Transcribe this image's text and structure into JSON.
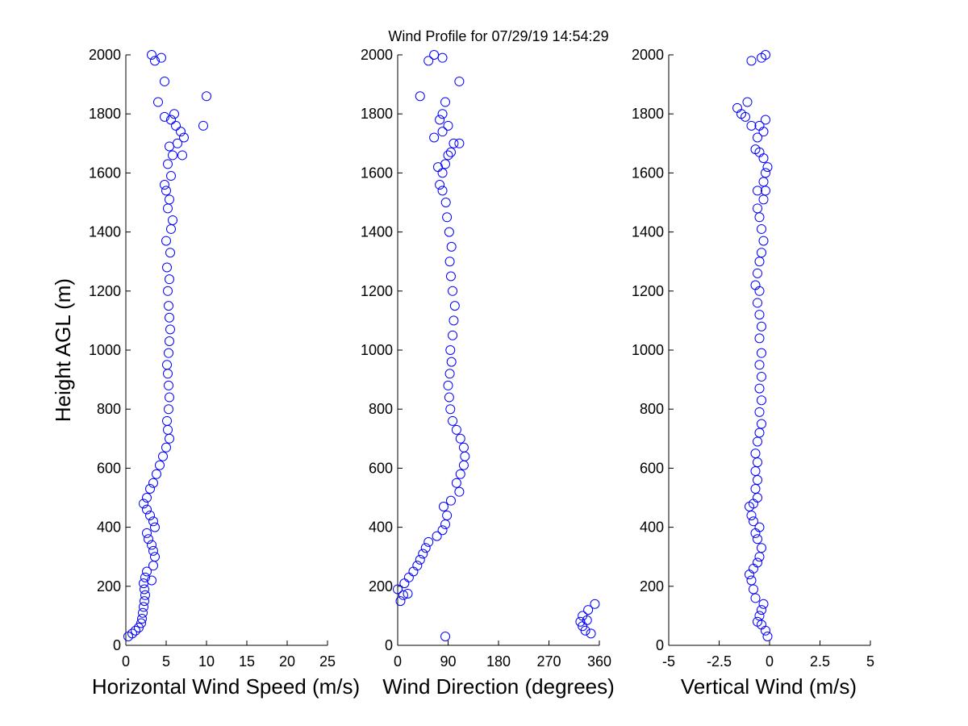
{
  "figure": {
    "title": "Wind Profile for  07/29/19 14:54:29"
  },
  "chart_data": [
    {
      "type": "scatter",
      "xlabel": "Horizontal Wind Speed (m/s)",
      "ylabel": "Height AGL (m)",
      "xlim": [
        0,
        25
      ],
      "ylim": [
        0,
        2000
      ],
      "xticks": [
        "0",
        "5",
        "10",
        "15",
        "20",
        "25"
      ],
      "xtick_values": [
        0,
        5,
        10,
        15,
        20,
        25
      ],
      "yticks": [
        "0",
        "200",
        "400",
        "600",
        "800",
        "1000",
        "1200",
        "1400",
        "1600",
        "1800",
        "2000"
      ],
      "ytick_values": [
        0,
        200,
        400,
        600,
        800,
        1000,
        1200,
        1400,
        1600,
        1800,
        2000
      ],
      "marker_color": "#0000ff",
      "points": [
        [
          0.3,
          30
        ],
        [
          0.8,
          40
        ],
        [
          1.2,
          50
        ],
        [
          1.6,
          60
        ],
        [
          1.9,
          75
        ],
        [
          2.0,
          90
        ],
        [
          2.1,
          110
        ],
        [
          2.2,
          130
        ],
        [
          2.3,
          150
        ],
        [
          2.4,
          170
        ],
        [
          2.3,
          190
        ],
        [
          2.2,
          210
        ],
        [
          2.4,
          230
        ],
        [
          2.6,
          250
        ],
        [
          3.2,
          220
        ],
        [
          3.4,
          270
        ],
        [
          3.6,
          300
        ],
        [
          3.4,
          320
        ],
        [
          3.2,
          340
        ],
        [
          2.8,
          360
        ],
        [
          2.6,
          380
        ],
        [
          3.6,
          400
        ],
        [
          3.4,
          420
        ],
        [
          3.0,
          440
        ],
        [
          2.6,
          460
        ],
        [
          2.2,
          480
        ],
        [
          2.6,
          500
        ],
        [
          3.0,
          530
        ],
        [
          3.4,
          550
        ],
        [
          3.8,
          580
        ],
        [
          4.2,
          610
        ],
        [
          4.6,
          640
        ],
        [
          5.0,
          670
        ],
        [
          5.4,
          700
        ],
        [
          5.2,
          730
        ],
        [
          5.1,
          760
        ],
        [
          5.3,
          800
        ],
        [
          5.4,
          840
        ],
        [
          5.3,
          880
        ],
        [
          5.2,
          920
        ],
        [
          5.1,
          950
        ],
        [
          5.3,
          990
        ],
        [
          5.4,
          1030
        ],
        [
          5.5,
          1070
        ],
        [
          5.4,
          1110
        ],
        [
          5.3,
          1150
        ],
        [
          5.2,
          1200
        ],
        [
          5.4,
          1240
        ],
        [
          5.1,
          1280
        ],
        [
          5.5,
          1330
        ],
        [
          5.0,
          1370
        ],
        [
          5.6,
          1410
        ],
        [
          5.8,
          1440
        ],
        [
          5.2,
          1480
        ],
        [
          5.4,
          1510
        ],
        [
          5.0,
          1540
        ],
        [
          4.8,
          1560
        ],
        [
          5.6,
          1590
        ],
        [
          5.2,
          1630
        ],
        [
          5.8,
          1660
        ],
        [
          5.4,
          1690
        ],
        [
          6.4,
          1700
        ],
        [
          6.8,
          1740
        ],
        [
          7.2,
          1720
        ],
        [
          5.6,
          1780
        ],
        [
          6.0,
          1800
        ],
        [
          4.8,
          1790
        ],
        [
          9.6,
          1760
        ],
        [
          10.0,
          1860
        ],
        [
          4.8,
          1910
        ],
        [
          3.2,
          2000
        ],
        [
          3.6,
          1980
        ],
        [
          4.4,
          1990
        ],
        [
          4.0,
          1840
        ],
        [
          7.0,
          1660
        ],
        [
          6.2,
          1760
        ]
      ]
    },
    {
      "type": "scatter",
      "xlabel": "Wind Direction (degrees)",
      "xlim": [
        0,
        360
      ],
      "ylim": [
        0,
        2000
      ],
      "xticks": [
        "0",
        "90",
        "180",
        "270",
        "360"
      ],
      "xtick_values": [
        0,
        90,
        180,
        270,
        360
      ],
      "yticks": [
        "0",
        "200",
        "400",
        "600",
        "800",
        "1000",
        "1200",
        "1400",
        "1600",
        "1800",
        "2000"
      ],
      "ytick_values": [
        0,
        200,
        400,
        600,
        800,
        1000,
        1200,
        1400,
        1600,
        1800,
        2000
      ],
      "marker_color": "#0000ff",
      "points": [
        [
          85,
          30
        ],
        [
          345,
          40
        ],
        [
          335,
          50
        ],
        [
          330,
          65
        ],
        [
          338,
          85
        ],
        [
          326,
          80
        ],
        [
          330,
          100
        ],
        [
          340,
          120
        ],
        [
          352,
          140
        ],
        [
          5,
          150
        ],
        [
          10,
          170
        ],
        [
          18,
          175
        ],
        [
          0,
          190
        ],
        [
          12,
          210
        ],
        [
          20,
          230
        ],
        [
          28,
          250
        ],
        [
          35,
          270
        ],
        [
          40,
          290
        ],
        [
          45,
          310
        ],
        [
          50,
          330
        ],
        [
          55,
          350
        ],
        [
          70,
          370
        ],
        [
          80,
          390
        ],
        [
          85,
          410
        ],
        [
          88,
          440
        ],
        [
          82,
          470
        ],
        [
          95,
          490
        ],
        [
          110,
          520
        ],
        [
          105,
          550
        ],
        [
          112,
          580
        ],
        [
          118,
          610
        ],
        [
          120,
          640
        ],
        [
          118,
          670
        ],
        [
          112,
          700
        ],
        [
          105,
          730
        ],
        [
          98,
          760
        ],
        [
          94,
          800
        ],
        [
          92,
          840
        ],
        [
          90,
          880
        ],
        [
          93,
          920
        ],
        [
          96,
          960
        ],
        [
          94,
          1000
        ],
        [
          98,
          1050
        ],
        [
          100,
          1100
        ],
        [
          102,
          1150
        ],
        [
          98,
          1200
        ],
        [
          95,
          1250
        ],
        [
          93,
          1300
        ],
        [
          96,
          1350
        ],
        [
          92,
          1400
        ],
        [
          88,
          1450
        ],
        [
          86,
          1500
        ],
        [
          80,
          1540
        ],
        [
          75,
          1560
        ],
        [
          80,
          1600
        ],
        [
          72,
          1620
        ],
        [
          85,
          1630
        ],
        [
          90,
          1660
        ],
        [
          95,
          1670
        ],
        [
          100,
          1700
        ],
        [
          65,
          1720
        ],
        [
          80,
          1740
        ],
        [
          90,
          1760
        ],
        [
          75,
          1780
        ],
        [
          80,
          1800
        ],
        [
          110,
          1700
        ],
        [
          40,
          1860
        ],
        [
          85,
          1840
        ],
        [
          110,
          1910
        ],
        [
          55,
          1980
        ],
        [
          65,
          2000
        ],
        [
          80,
          1990
        ]
      ]
    },
    {
      "type": "scatter",
      "xlabel": "Vertical Wind (m/s)",
      "xlim": [
        -5,
        5
      ],
      "ylim": [
        0,
        2000
      ],
      "xticks": [
        "-5",
        "-2.5",
        "0",
        "2.5",
        "5"
      ],
      "xtick_values": [
        -5,
        -2.5,
        0,
        2.5,
        5
      ],
      "yticks": [
        "0",
        "200",
        "400",
        "600",
        "800",
        "1000",
        "1200",
        "1400",
        "1600",
        "1800",
        "2000"
      ],
      "ytick_values": [
        0,
        200,
        400,
        600,
        800,
        1000,
        1200,
        1400,
        1600,
        1800,
        2000
      ],
      "marker_color": "#0000ff",
      "points": [
        [
          -0.1,
          30
        ],
        [
          -0.2,
          50
        ],
        [
          -0.4,
          70
        ],
        [
          -0.6,
          80
        ],
        [
          -0.5,
          100
        ],
        [
          -0.4,
          120
        ],
        [
          -0.3,
          140
        ],
        [
          -0.7,
          160
        ],
        [
          -0.8,
          190
        ],
        [
          -0.9,
          220
        ],
        [
          -1.0,
          240
        ],
        [
          -0.8,
          260
        ],
        [
          -0.6,
          280
        ],
        [
          -0.5,
          300
        ],
        [
          -0.4,
          330
        ],
        [
          -0.6,
          360
        ],
        [
          -0.7,
          380
        ],
        [
          -0.5,
          400
        ],
        [
          -0.8,
          420
        ],
        [
          -0.9,
          440
        ],
        [
          -1.0,
          470
        ],
        [
          -0.8,
          480
        ],
        [
          -0.6,
          500
        ],
        [
          -0.7,
          530
        ],
        [
          -0.6,
          560
        ],
        [
          -0.7,
          590
        ],
        [
          -0.6,
          620
        ],
        [
          -0.7,
          650
        ],
        [
          -0.6,
          690
        ],
        [
          -0.5,
          720
        ],
        [
          -0.4,
          750
        ],
        [
          -0.5,
          790
        ],
        [
          -0.4,
          830
        ],
        [
          -0.5,
          870
        ],
        [
          -0.4,
          910
        ],
        [
          -0.5,
          950
        ],
        [
          -0.4,
          990
        ],
        [
          -0.5,
          1040
        ],
        [
          -0.4,
          1080
        ],
        [
          -0.5,
          1120
        ],
        [
          -0.6,
          1160
        ],
        [
          -0.5,
          1200
        ],
        [
          -0.7,
          1220
        ],
        [
          -0.6,
          1260
        ],
        [
          -0.5,
          1300
        ],
        [
          -0.4,
          1330
        ],
        [
          -0.3,
          1370
        ],
        [
          -0.4,
          1410
        ],
        [
          -0.5,
          1450
        ],
        [
          -0.6,
          1480
        ],
        [
          -0.3,
          1510
        ],
        [
          -0.2,
          1540
        ],
        [
          -0.6,
          1540
        ],
        [
          -0.3,
          1570
        ],
        [
          -0.2,
          1600
        ],
        [
          -0.1,
          1620
        ],
        [
          -0.3,
          1650
        ],
        [
          -0.5,
          1670
        ],
        [
          -0.7,
          1680
        ],
        [
          -0.6,
          1720
        ],
        [
          -0.3,
          1740
        ],
        [
          -0.5,
          1760
        ],
        [
          -0.2,
          1780
        ],
        [
          -1.2,
          1790
        ],
        [
          -1.4,
          1800
        ],
        [
          -1.1,
          1840
        ],
        [
          -1.6,
          1820
        ],
        [
          -0.9,
          1760
        ],
        [
          -0.9,
          1980
        ],
        [
          -0.4,
          1990
        ],
        [
          -0.2,
          2000
        ]
      ]
    }
  ]
}
